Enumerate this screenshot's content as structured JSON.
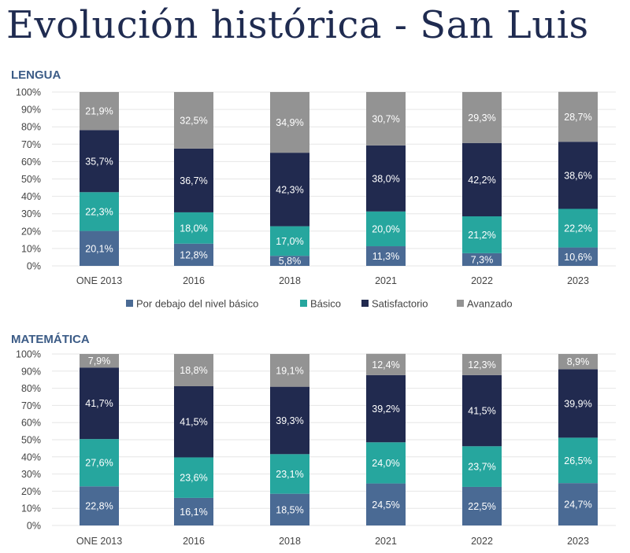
{
  "title": "Evolución histórica - San Luis",
  "legend": {
    "position": "bottom-center-between-charts"
  },
  "chart_data": [
    {
      "type": "bar",
      "stacked": true,
      "title": "LENGUA",
      "categories": [
        "ONE 2013",
        "2016",
        "2018",
        "2021",
        "2022",
        "2023"
      ],
      "yticks": [
        "0%",
        "10%",
        "20%",
        "30%",
        "40%",
        "50%",
        "60%",
        "70%",
        "80%",
        "90%",
        "100%"
      ],
      "ylim": [
        0,
        100
      ],
      "grid": true,
      "series": [
        {
          "name": "Por debajo del nivel básico",
          "color": "#4a6a94",
          "values": [
            20.1,
            12.8,
            5.8,
            11.3,
            7.3,
            10.6
          ],
          "labels": [
            "20,1%",
            "12,8%",
            "5,8%",
            "11,3%",
            "7,3%",
            "10,6%"
          ]
        },
        {
          "name": "Básico",
          "color": "#26a69e",
          "values": [
            22.3,
            18.0,
            17.0,
            20.0,
            21.2,
            22.2
          ],
          "labels": [
            "22,3%",
            "18,0%",
            "17,0%",
            "20,0%",
            "21,2%",
            "22,2%"
          ]
        },
        {
          "name": "Satisfactorio",
          "color": "#212a4f",
          "values": [
            35.7,
            36.7,
            42.3,
            38.0,
            42.2,
            38.6
          ],
          "labels": [
            "35,7%",
            "36,7%",
            "42,3%",
            "38,0%",
            "42,2%",
            "38,6%"
          ]
        },
        {
          "name": "Avanzado",
          "color": "#939393",
          "values": [
            21.9,
            32.5,
            34.9,
            30.7,
            29.3,
            28.7
          ],
          "labels": [
            "21,9%",
            "32,5%",
            "34,9%",
            "30,7%",
            "29,3%",
            "28,7%"
          ]
        }
      ]
    },
    {
      "type": "bar",
      "stacked": true,
      "title": "MATEMÁTICA",
      "categories": [
        "ONE 2013",
        "2016",
        "2018",
        "2021",
        "2022",
        "2023"
      ],
      "yticks": [
        "0%",
        "10%",
        "20%",
        "30%",
        "40%",
        "50%",
        "60%",
        "70%",
        "80%",
        "90%",
        "100%"
      ],
      "ylim": [
        0,
        100
      ],
      "grid": true,
      "series": [
        {
          "name": "Por debajo del nivel básico",
          "color": "#4a6a94",
          "values": [
            22.8,
            16.1,
            18.5,
            24.5,
            22.5,
            24.7
          ],
          "labels": [
            "22,8%",
            "16,1%",
            "18,5%",
            "24,5%",
            "22,5%",
            "24,7%"
          ]
        },
        {
          "name": "Básico",
          "color": "#26a69e",
          "values": [
            27.6,
            23.6,
            23.1,
            24.0,
            23.7,
            26.5
          ],
          "labels": [
            "27,6%",
            "23,6%",
            "23,1%",
            "24,0%",
            "23,7%",
            "26,5%"
          ]
        },
        {
          "name": "Satisfactorio",
          "color": "#212a4f",
          "values": [
            41.7,
            41.5,
            39.3,
            39.2,
            41.5,
            39.9
          ],
          "labels": [
            "41,7%",
            "41,5%",
            "39,3%",
            "39,2%",
            "41,5%",
            "39,9%"
          ]
        },
        {
          "name": "Avanzado",
          "color": "#939393",
          "values": [
            7.9,
            18.8,
            19.1,
            12.4,
            12.3,
            8.9
          ],
          "labels": [
            "7,9%",
            "18,8%",
            "19,1%",
            "12,4%",
            "12,3%",
            "8,9%"
          ]
        }
      ]
    }
  ]
}
